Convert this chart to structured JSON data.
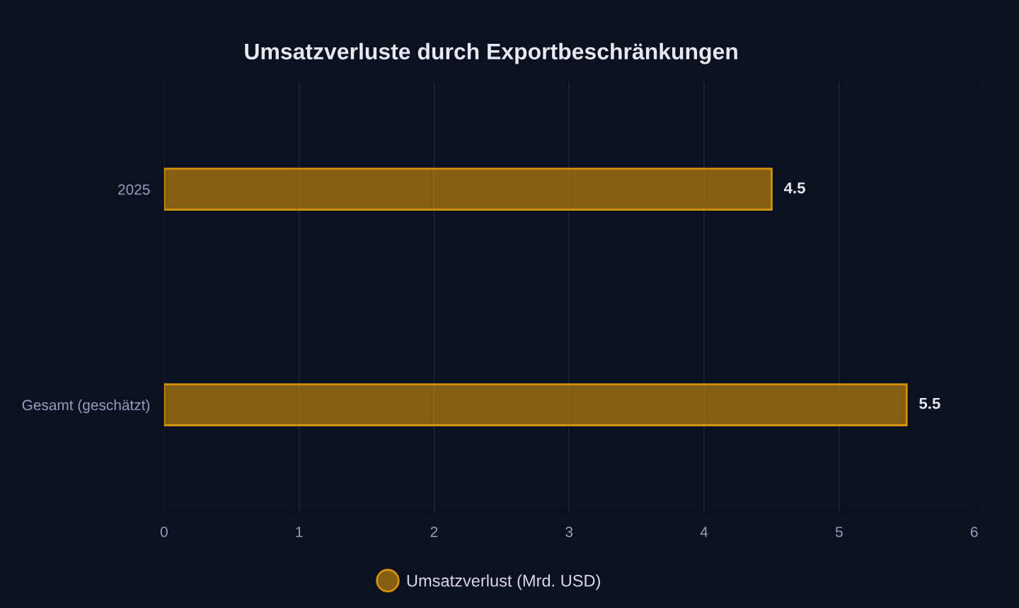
{
  "chart_data": {
    "type": "bar",
    "orientation": "horizontal",
    "title": "Umsatzverluste durch Exportbeschränkungen",
    "categories": [
      "2025",
      "Gesamt (geschätzt)"
    ],
    "series": [
      {
        "name": "Umsatzverlust (Mrd. USD)",
        "color": "#d4920b",
        "values": [
          4.5,
          5.5
        ]
      }
    ],
    "xlim": [
      0,
      6
    ],
    "xticks": [
      0,
      1,
      2,
      3,
      4,
      5,
      6
    ],
    "grid": "x",
    "legend": "bottom",
    "data_labels": true
  }
}
